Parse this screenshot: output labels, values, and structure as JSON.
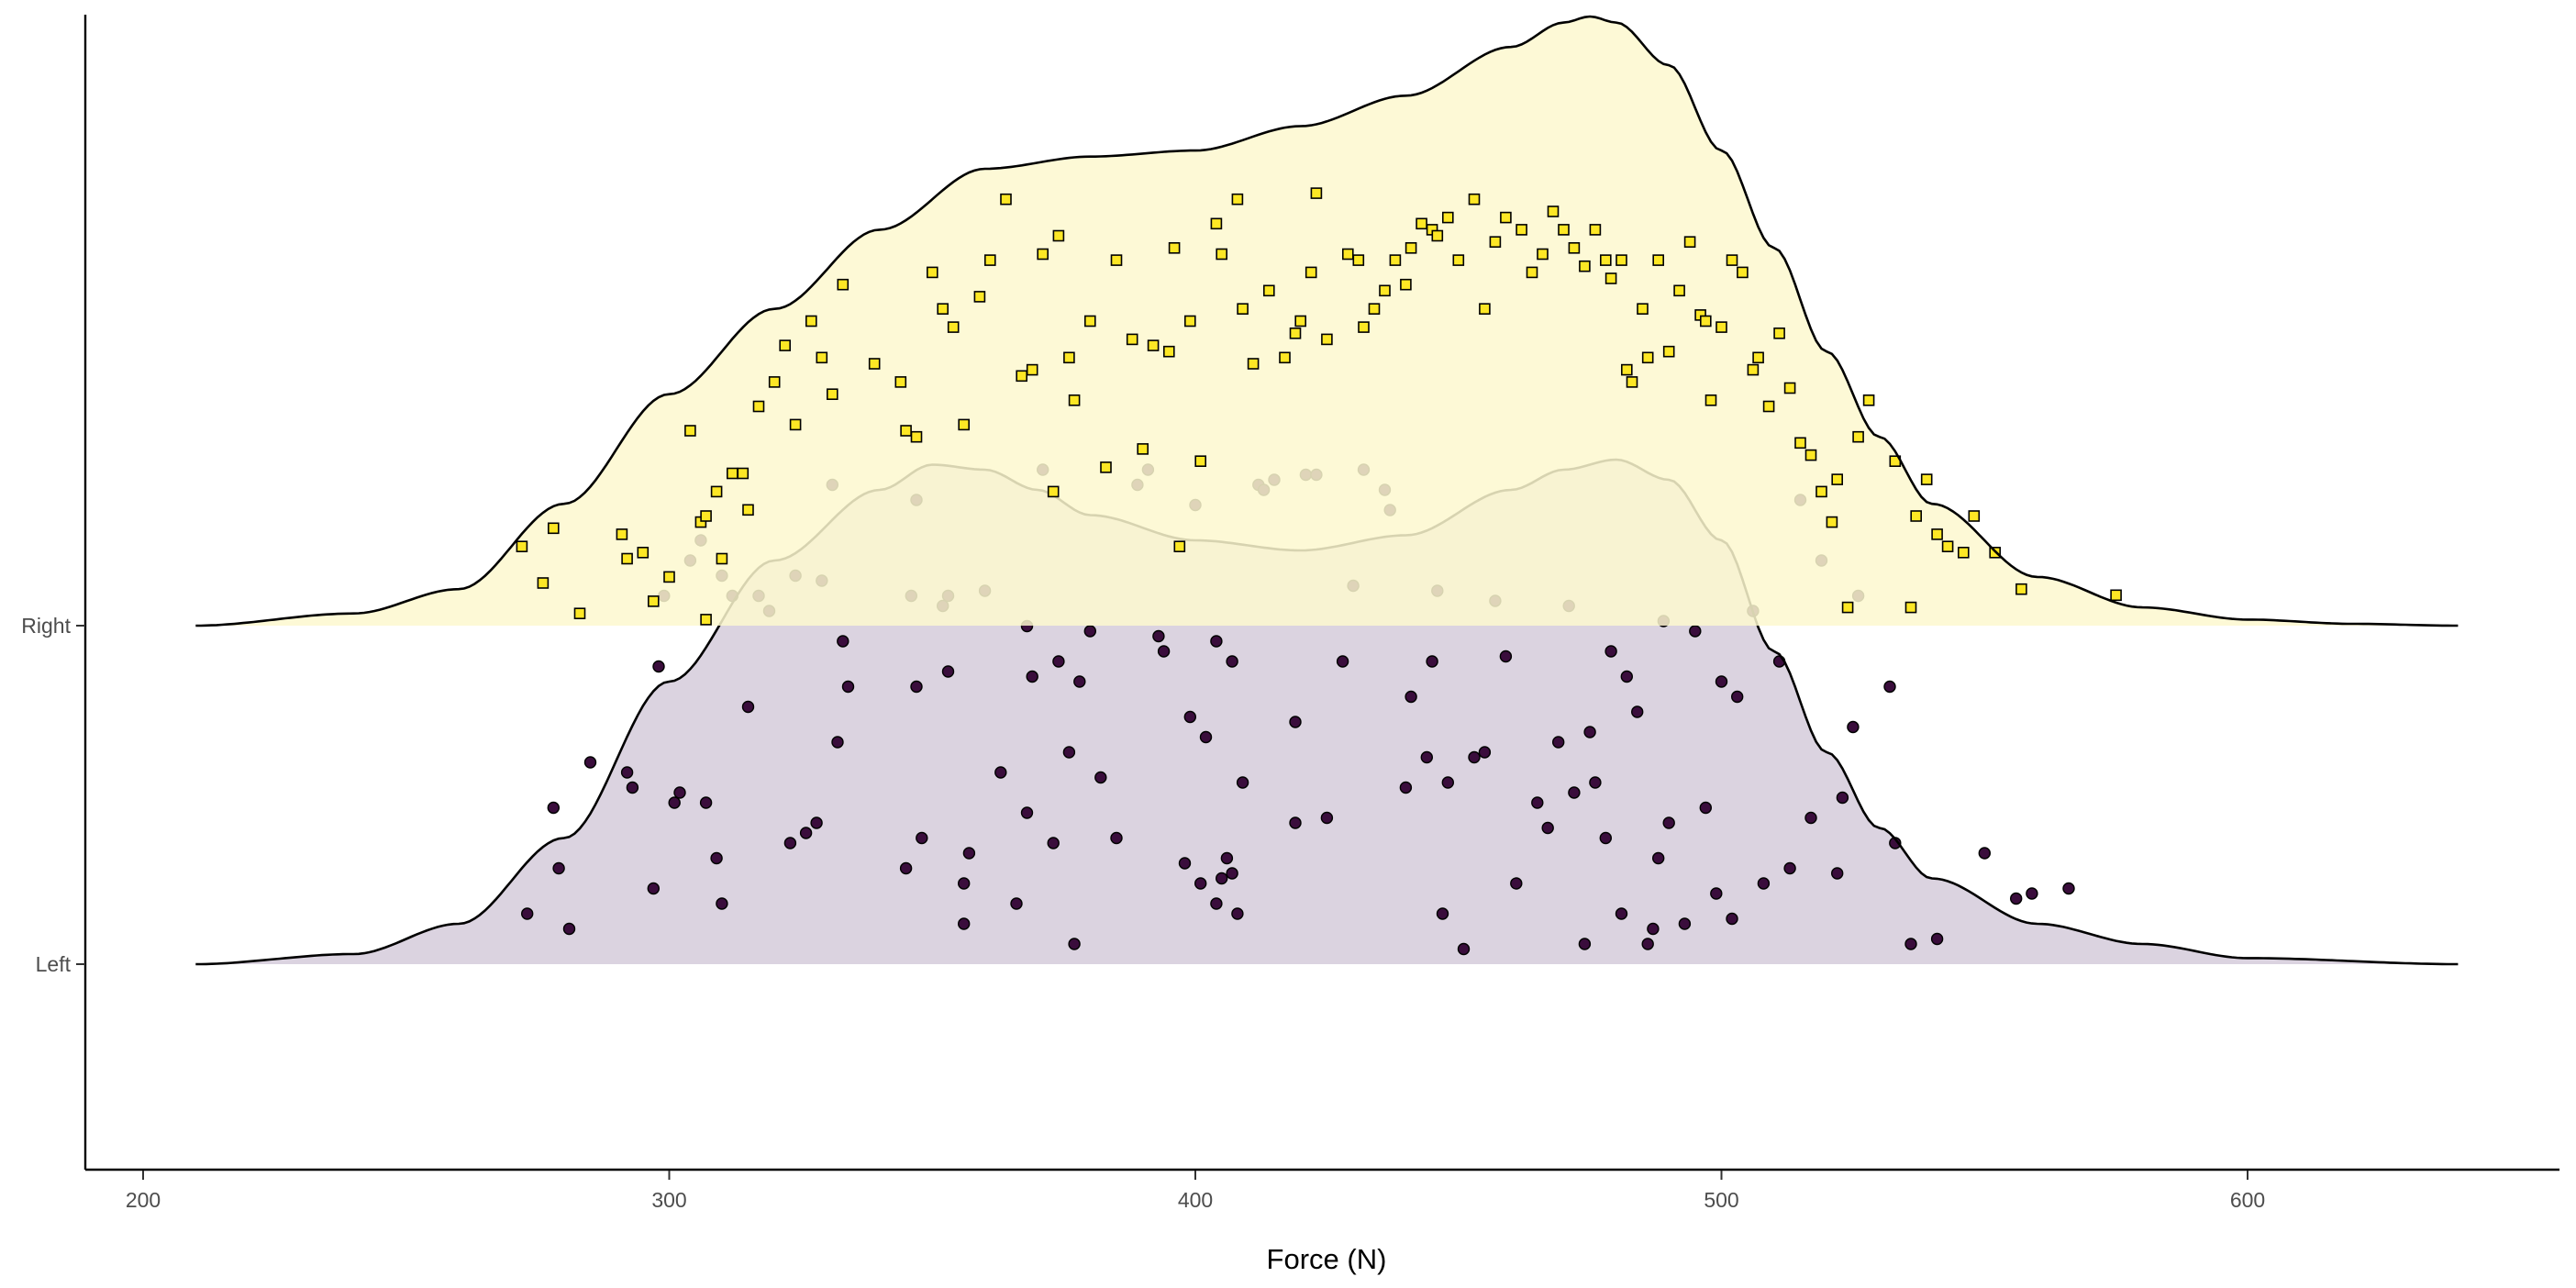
{
  "chart_data": {
    "type": "ridgeline",
    "xlabel": "Force (N)",
    "ylabel": "",
    "xlim": [
      189,
      659
    ],
    "x_ticks": [
      200,
      300,
      400,
      500,
      600
    ],
    "x_tick_labels": [
      "200",
      "300",
      "400",
      "500",
      "600"
    ],
    "categories": [
      "Left",
      "Right"
    ],
    "grid": false,
    "legend": "none",
    "series": [
      {
        "name": "Left",
        "fill_color": "#d5cbdb",
        "point_color": "#3a0d3c",
        "point_shape": "circle",
        "density_x": [
          210,
          240,
          260,
          280,
          300,
          320,
          340,
          350,
          360,
          370,
          380,
          400,
          420,
          440,
          460,
          470,
          480,
          490,
          500,
          510,
          520,
          530,
          540,
          560,
          580,
          600,
          640
        ],
        "density_h": [
          0.0,
          0.02,
          0.08,
          0.25,
          0.56,
          0.8,
          0.94,
          0.99,
          0.98,
          0.94,
          0.89,
          0.84,
          0.82,
          0.85,
          0.94,
          0.98,
          1.0,
          0.96,
          0.84,
          0.62,
          0.42,
          0.27,
          0.17,
          0.08,
          0.04,
          0.012,
          0.0
        ],
        "points": [
          [
            273,
            0.1
          ],
          [
            278,
            0.31
          ],
          [
            279,
            0.19
          ],
          [
            281,
            0.07
          ],
          [
            285,
            0.4
          ],
          [
            292,
            0.38
          ],
          [
            293,
            0.35
          ],
          [
            297,
            0.15
          ],
          [
            298,
            0.59
          ],
          [
            299,
            0.73
          ],
          [
            301,
            0.32
          ],
          [
            302,
            0.34
          ],
          [
            304,
            0.8
          ],
          [
            306,
            0.84
          ],
          [
            307,
            0.32
          ],
          [
            309,
            0.21
          ],
          [
            310,
            0.12
          ],
          [
            310,
            0.77
          ],
          [
            312,
            0.73
          ],
          [
            315,
            0.51
          ],
          [
            317,
            0.73
          ],
          [
            319,
            0.7
          ],
          [
            323,
            0.24
          ],
          [
            324,
            0.77
          ],
          [
            326,
            0.26
          ],
          [
            328,
            0.28
          ],
          [
            329,
            0.76
          ],
          [
            331,
            0.95
          ],
          [
            332,
            0.44
          ],
          [
            333,
            0.64
          ],
          [
            334,
            0.55
          ],
          [
            345,
            0.19
          ],
          [
            346,
            0.73
          ],
          [
            347,
            0.92
          ],
          [
            347,
            0.55
          ],
          [
            348,
            0.25
          ],
          [
            352,
            0.71
          ],
          [
            353,
            0.73
          ],
          [
            353,
            0.58
          ],
          [
            356,
            0.08
          ],
          [
            356,
            0.16
          ],
          [
            357,
            0.22
          ],
          [
            360,
            0.74
          ],
          [
            363,
            0.38
          ],
          [
            366,
            0.12
          ],
          [
            368,
            0.67
          ],
          [
            368,
            0.3
          ],
          [
            369,
            0.57
          ],
          [
            371,
            0.98
          ],
          [
            373,
            0.24
          ],
          [
            374,
            0.6
          ],
          [
            376,
            0.42
          ],
          [
            377,
            0.04
          ],
          [
            378,
            0.56
          ],
          [
            380,
            0.66
          ],
          [
            382,
            0.37
          ],
          [
            385,
            0.25
          ],
          [
            389,
            0.95
          ],
          [
            391,
            0.98
          ],
          [
            393,
            0.65
          ],
          [
            394,
            0.62
          ],
          [
            398,
            0.2
          ],
          [
            399,
            0.49
          ],
          [
            400,
            0.91
          ],
          [
            401,
            0.16
          ],
          [
            402,
            0.45
          ],
          [
            404,
            0.64
          ],
          [
            404,
            0.12
          ],
          [
            405,
            0.17
          ],
          [
            406,
            0.21
          ],
          [
            407,
            0.6
          ],
          [
            407,
            0.18
          ],
          [
            408,
            0.1
          ],
          [
            409,
            0.36
          ],
          [
            412,
            0.95
          ],
          [
            413,
            0.94
          ],
          [
            415,
            0.96
          ],
          [
            419,
            0.48
          ],
          [
            419,
            0.28
          ],
          [
            421,
            0.97
          ],
          [
            423,
            0.97
          ],
          [
            425,
            0.29
          ],
          [
            428,
            0.6
          ],
          [
            430,
            0.75
          ],
          [
            432,
            0.98
          ],
          [
            436,
            0.94
          ],
          [
            437,
            0.9
          ],
          [
            440,
            0.35
          ],
          [
            441,
            0.53
          ],
          [
            444,
            0.41
          ],
          [
            445,
            0.6
          ],
          [
            446,
            0.74
          ],
          [
            447,
            0.1
          ],
          [
            448,
            0.36
          ],
          [
            451,
            0.03
          ],
          [
            453,
            0.41
          ],
          [
            455,
            0.42
          ],
          [
            457,
            0.72
          ],
          [
            459,
            0.61
          ],
          [
            461,
            0.16
          ],
          [
            465,
            0.32
          ],
          [
            467,
            0.27
          ],
          [
            469,
            0.44
          ],
          [
            471,
            0.71
          ],
          [
            472,
            0.34
          ],
          [
            474,
            0.04
          ],
          [
            475,
            0.46
          ],
          [
            476,
            0.36
          ],
          [
            478,
            0.25
          ],
          [
            479,
            0.62
          ],
          [
            481,
            0.1
          ],
          [
            482,
            0.57
          ],
          [
            484,
            0.5
          ],
          [
            486,
            0.04
          ],
          [
            487,
            0.07
          ],
          [
            488,
            0.21
          ],
          [
            489,
            0.68
          ],
          [
            490,
            0.28
          ],
          [
            493,
            0.08
          ],
          [
            495,
            0.66
          ],
          [
            497,
            0.31
          ],
          [
            499,
            0.14
          ],
          [
            500,
            0.56
          ],
          [
            502,
            0.09
          ],
          [
            503,
            0.53
          ],
          [
            506,
            0.7
          ],
          [
            508,
            0.16
          ],
          [
            511,
            0.6
          ],
          [
            513,
            0.19
          ],
          [
            515,
            0.92
          ],
          [
            517,
            0.29
          ],
          [
            519,
            0.8
          ],
          [
            522,
            0.18
          ],
          [
            523,
            0.33
          ],
          [
            525,
            0.47
          ],
          [
            526,
            0.73
          ],
          [
            532,
            0.55
          ],
          [
            533,
            0.24
          ],
          [
            536,
            0.04
          ],
          [
            541,
            0.05
          ],
          [
            550,
            0.22
          ],
          [
            556,
            0.13
          ],
          [
            559,
            0.14
          ],
          [
            566,
            0.15
          ]
        ]
      },
      {
        "name": "Right",
        "fill_color": "#fdf8cf",
        "point_color": "#fde725",
        "point_shape": "square",
        "density_x": [
          210,
          240,
          260,
          280,
          300,
          320,
          340,
          360,
          380,
          400,
          420,
          440,
          460,
          470,
          475,
          480,
          490,
          500,
          510,
          520,
          530,
          540,
          560,
          580,
          600,
          620,
          640
        ],
        "density_h": [
          0.0,
          0.02,
          0.06,
          0.2,
          0.38,
          0.52,
          0.65,
          0.75,
          0.77,
          0.78,
          0.82,
          0.87,
          0.95,
          0.99,
          1.0,
          0.99,
          0.92,
          0.78,
          0.62,
          0.45,
          0.31,
          0.2,
          0.08,
          0.03,
          0.01,
          0.003,
          0.0
        ],
        "points": [
          [
            272,
            0.13
          ],
          [
            276,
            0.07
          ],
          [
            278,
            0.16
          ],
          [
            283,
            0.02
          ],
          [
            291,
            0.15
          ],
          [
            292,
            0.11
          ],
          [
            295,
            0.12
          ],
          [
            297,
            0.04
          ],
          [
            300,
            0.08
          ],
          [
            304,
            0.32
          ],
          [
            306,
            0.17
          ],
          [
            307,
            0.18
          ],
          [
            307,
            0.01
          ],
          [
            309,
            0.22
          ],
          [
            310,
            0.11
          ],
          [
            312,
            0.25
          ],
          [
            314,
            0.25
          ],
          [
            315,
            0.19
          ],
          [
            317,
            0.36
          ],
          [
            320,
            0.4
          ],
          [
            322,
            0.46
          ],
          [
            324,
            0.33
          ],
          [
            327,
            0.5
          ],
          [
            329,
            0.44
          ],
          [
            331,
            0.38
          ],
          [
            333,
            0.56
          ],
          [
            339,
            0.43
          ],
          [
            344,
            0.4
          ],
          [
            345,
            0.32
          ],
          [
            347,
            0.31
          ],
          [
            350,
            0.58
          ],
          [
            352,
            0.52
          ],
          [
            354,
            0.49
          ],
          [
            356,
            0.33
          ],
          [
            359,
            0.54
          ],
          [
            361,
            0.6
          ],
          [
            364,
            0.7
          ],
          [
            367,
            0.41
          ],
          [
            369,
            0.42
          ],
          [
            371,
            0.61
          ],
          [
            373,
            0.22
          ],
          [
            374,
            0.64
          ],
          [
            376,
            0.44
          ],
          [
            377,
            0.37
          ],
          [
            380,
            0.5
          ],
          [
            383,
            0.26
          ],
          [
            385,
            0.6
          ],
          [
            388,
            0.47
          ],
          [
            390,
            0.29
          ],
          [
            392,
            0.46
          ],
          [
            395,
            0.45
          ],
          [
            396,
            0.62
          ],
          [
            397,
            0.13
          ],
          [
            399,
            0.5
          ],
          [
            401,
            0.27
          ],
          [
            404,
            0.66
          ],
          [
            405,
            0.61
          ],
          [
            408,
            0.7
          ],
          [
            409,
            0.52
          ],
          [
            411,
            0.43
          ],
          [
            414,
            0.55
          ],
          [
            417,
            0.44
          ],
          [
            419,
            0.48
          ],
          [
            420,
            0.5
          ],
          [
            422,
            0.58
          ],
          [
            423,
            0.71
          ],
          [
            425,
            0.47
          ],
          [
            429,
            0.61
          ],
          [
            431,
            0.6
          ],
          [
            432,
            0.49
          ],
          [
            434,
            0.52
          ],
          [
            436,
            0.55
          ],
          [
            438,
            0.6
          ],
          [
            440,
            0.56
          ],
          [
            441,
            0.62
          ],
          [
            443,
            0.66
          ],
          [
            445,
            0.65
          ],
          [
            446,
            0.64
          ],
          [
            448,
            0.67
          ],
          [
            450,
            0.6
          ],
          [
            453,
            0.7
          ],
          [
            455,
            0.52
          ],
          [
            457,
            0.63
          ],
          [
            459,
            0.67
          ],
          [
            462,
            0.65
          ],
          [
            464,
            0.58
          ],
          [
            466,
            0.61
          ],
          [
            468,
            0.68
          ],
          [
            470,
            0.65
          ],
          [
            472,
            0.62
          ],
          [
            474,
            0.59
          ],
          [
            476,
            0.65
          ],
          [
            478,
            0.6
          ],
          [
            479,
            0.57
          ],
          [
            481,
            0.6
          ],
          [
            482,
            0.42
          ],
          [
            483,
            0.4
          ],
          [
            485,
            0.52
          ],
          [
            486,
            0.44
          ],
          [
            488,
            0.6
          ],
          [
            490,
            0.45
          ],
          [
            492,
            0.55
          ],
          [
            494,
            0.63
          ],
          [
            496,
            0.51
          ],
          [
            497,
            0.5
          ],
          [
            498,
            0.37
          ],
          [
            500,
            0.49
          ],
          [
            502,
            0.6
          ],
          [
            504,
            0.58
          ],
          [
            506,
            0.42
          ],
          [
            507,
            0.44
          ],
          [
            509,
            0.36
          ],
          [
            511,
            0.48
          ],
          [
            513,
            0.39
          ],
          [
            515,
            0.3
          ],
          [
            517,
            0.28
          ],
          [
            519,
            0.22
          ],
          [
            521,
            0.17
          ],
          [
            522,
            0.24
          ],
          [
            524,
            0.03
          ],
          [
            526,
            0.31
          ],
          [
            528,
            0.37
          ],
          [
            533,
            0.27
          ],
          [
            536,
            0.03
          ],
          [
            537,
            0.18
          ],
          [
            539,
            0.24
          ],
          [
            541,
            0.15
          ],
          [
            543,
            0.13
          ],
          [
            546,
            0.12
          ],
          [
            548,
            0.18
          ],
          [
            552,
            0.12
          ],
          [
            557,
            0.06
          ],
          [
            575,
            0.05
          ]
        ]
      }
    ]
  }
}
